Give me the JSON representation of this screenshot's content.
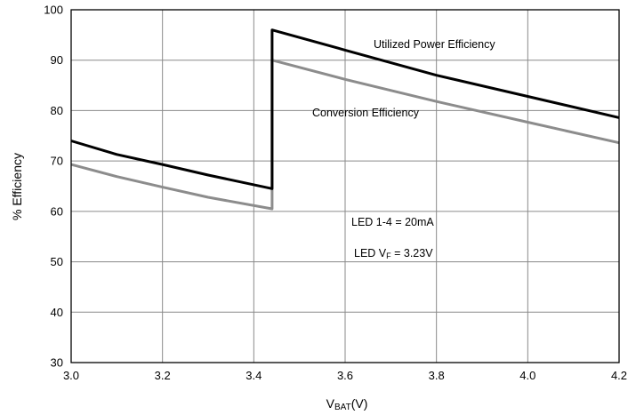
{
  "chart_data": {
    "type": "line",
    "title": "",
    "xlabel": {
      "main": "V",
      "sub": "BAT",
      "suffix": "(V)"
    },
    "ylabel": "% Efficiency",
    "xlim": [
      3.0,
      4.2
    ],
    "ylim": [
      30,
      100
    ],
    "xticks": [
      "3.0",
      "3.2",
      "3.4",
      "3.6",
      "3.8",
      "4.0",
      "4.2"
    ],
    "yticks": [
      "30",
      "40",
      "50",
      "60",
      "70",
      "80",
      "90",
      "100"
    ],
    "grid": true,
    "series": [
      {
        "name": "Utilized Power Efficiency",
        "color": "#000000",
        "x": [
          3.0,
          3.1,
          3.2,
          3.3,
          3.44,
          3.44,
          3.6,
          3.8,
          4.0,
          4.2
        ],
        "y": [
          74.0,
          71.3,
          69.3,
          67.2,
          64.5,
          96.0,
          92.0,
          87.0,
          82.8,
          78.6
        ]
      },
      {
        "name": "Conversion Efficiency",
        "color": "#8c8c8c",
        "x": [
          3.0,
          3.1,
          3.2,
          3.3,
          3.44,
          3.44,
          3.6,
          3.8,
          4.0,
          4.2
        ],
        "y": [
          69.3,
          66.9,
          64.8,
          62.8,
          60.5,
          90.0,
          86.2,
          81.8,
          77.7,
          73.6
        ]
      }
    ],
    "annotations": {
      "led_current": "LED 1-4 = 20mA",
      "led_vf": {
        "main": "LED V",
        "sub": "F",
        "suffix": " = 3.23V"
      }
    }
  }
}
